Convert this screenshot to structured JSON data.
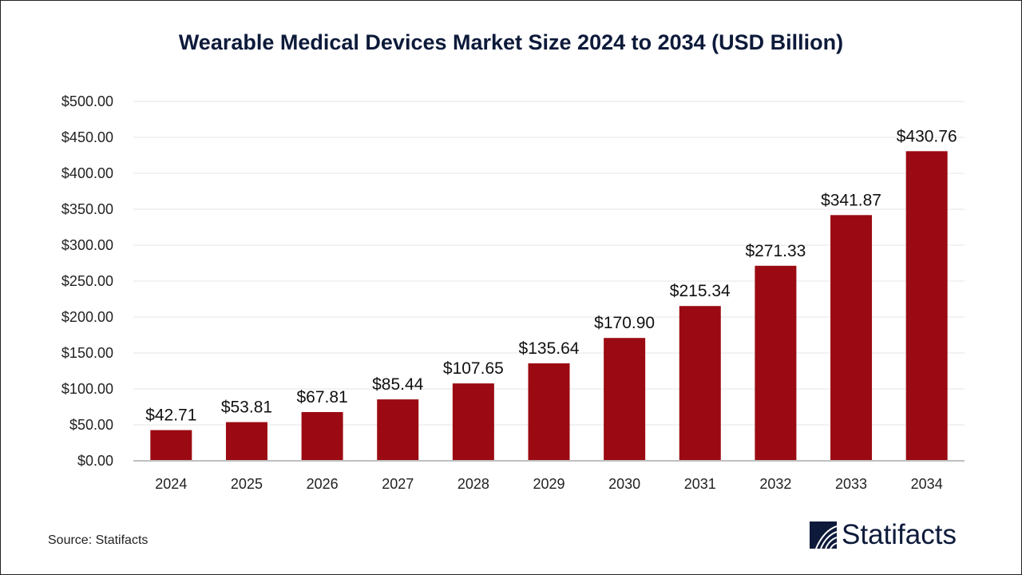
{
  "chart_data": {
    "type": "bar",
    "title": "Wearable Medical Devices Market Size 2024 to 2034 (USD Billion)",
    "xlabel": "",
    "ylabel": "",
    "categories": [
      "2024",
      "2025",
      "2026",
      "2027",
      "2028",
      "2029",
      "2030",
      "2031",
      "2032",
      "2033",
      "2034"
    ],
    "values": [
      42.71,
      53.81,
      67.81,
      85.44,
      107.65,
      135.64,
      170.9,
      215.34,
      271.33,
      341.87,
      430.76
    ],
    "data_labels": [
      "$42.71",
      "$53.81",
      "$67.81",
      "$85.44",
      "$107.65",
      "$135.64",
      "$170.90",
      "$215.34",
      "$271.33",
      "$341.87",
      "$430.76"
    ],
    "ylim": [
      0,
      500
    ],
    "yticks": [
      0,
      50,
      100,
      150,
      200,
      250,
      300,
      350,
      400,
      450,
      500
    ],
    "ytick_labels": [
      "$0.00",
      "$50.00",
      "$100.00",
      "$150.00",
      "$200.00",
      "$250.00",
      "$300.00",
      "$350.00",
      "$400.00",
      "$450.00",
      "$500.00"
    ],
    "grid": true,
    "legend": "none",
    "bar_color": "#9b0a12"
  },
  "source": "Source: Statifacts",
  "logo": {
    "text": "Statifacts",
    "color": "#0d1a3a"
  }
}
